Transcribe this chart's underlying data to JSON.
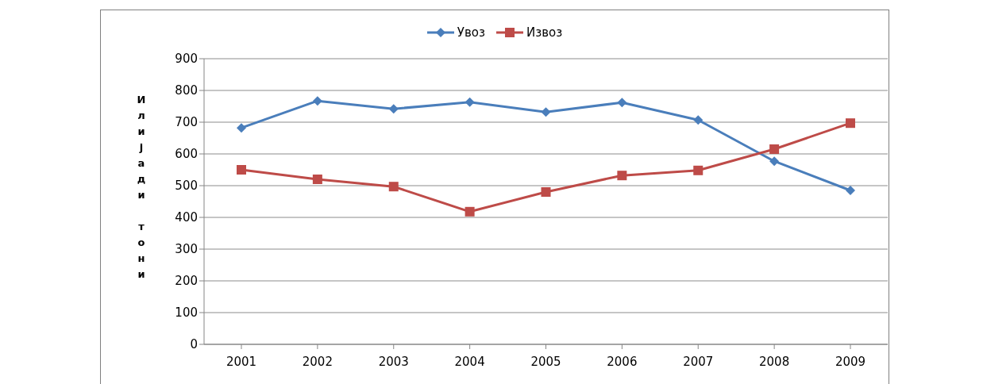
{
  "chart_data": {
    "type": "line",
    "ylabel": "Илијади тони",
    "categories": [
      "2001",
      "2002",
      "2003",
      "2004",
      "2005",
      "2006",
      "2007",
      "2008",
      "2009"
    ],
    "series": [
      {
        "name": "Увоз",
        "color": "#4a7ebb",
        "marker": "diamond",
        "values": [
          682,
          767,
          742,
          763,
          732,
          762,
          707,
          577,
          485
        ]
      },
      {
        "name": "Извоз",
        "color": "#be4b48",
        "marker": "square",
        "values": [
          550,
          520,
          497,
          418,
          480,
          532,
          548,
          615,
          697
        ]
      }
    ],
    "ylim": [
      0,
      900
    ],
    "yticks": [
      0,
      100,
      200,
      300,
      400,
      500,
      600,
      700,
      800,
      900
    ],
    "grid": "y",
    "legend": "top"
  }
}
